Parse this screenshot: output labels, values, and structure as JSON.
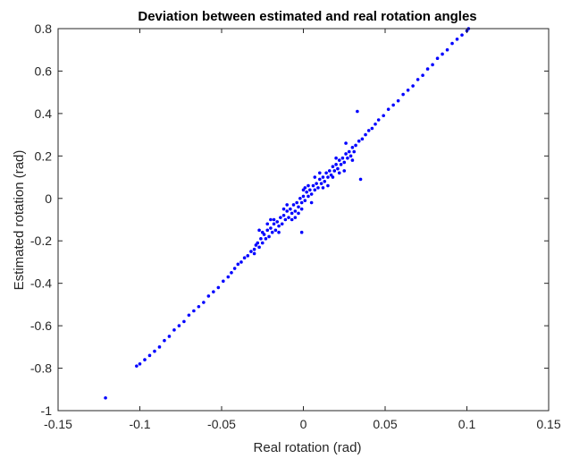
{
  "chart_data": {
    "type": "scatter",
    "title": "Deviation between estimated and real rotation angles",
    "xlabel": "Real rotation (rad)",
    "ylabel": "Estimated rotation (rad)",
    "xlim": [
      -0.15,
      0.15
    ],
    "ylim": [
      -1,
      0.8
    ],
    "xticks": [
      -0.15,
      -0.1,
      -0.05,
      0,
      0.05,
      0.1,
      0.15
    ],
    "xtick_labels": [
      "-0.15",
      "-0.1",
      "-0.05",
      "0",
      "0.05",
      "0.1",
      "0.15"
    ],
    "yticks": [
      -1,
      -0.8,
      -0.6,
      -0.4,
      -0.2,
      0,
      0.2,
      0.4,
      0.6,
      0.8
    ],
    "ytick_labels": [
      "-1",
      "-0.8",
      "-0.6",
      "-0.4",
      "-0.2",
      "0",
      "0.2",
      "0.4",
      "0.6",
      "0.8"
    ],
    "grid": false,
    "marker_color": "#0000ff",
    "axis_color": "#262626",
    "series": [
      {
        "points": [
          [
            -0.121,
            -0.94
          ],
          [
            -0.102,
            -0.79
          ],
          [
            -0.1,
            -0.78
          ],
          [
            -0.097,
            -0.76
          ],
          [
            -0.094,
            -0.74
          ],
          [
            -0.091,
            -0.72
          ],
          [
            -0.088,
            -0.7
          ],
          [
            -0.085,
            -0.67
          ],
          [
            -0.082,
            -0.65
          ],
          [
            -0.079,
            -0.62
          ],
          [
            -0.076,
            -0.6
          ],
          [
            -0.073,
            -0.58
          ],
          [
            -0.07,
            -0.55
          ],
          [
            -0.067,
            -0.53
          ],
          [
            -0.064,
            -0.51
          ],
          [
            -0.061,
            -0.49
          ],
          [
            -0.058,
            -0.46
          ],
          [
            -0.055,
            -0.44
          ],
          [
            -0.052,
            -0.42
          ],
          [
            -0.049,
            -0.39
          ],
          [
            -0.046,
            -0.37
          ],
          [
            -0.044,
            -0.35
          ],
          [
            -0.042,
            -0.33
          ],
          [
            -0.04,
            -0.31
          ],
          [
            -0.038,
            -0.3
          ],
          [
            -0.036,
            -0.28
          ],
          [
            -0.034,
            -0.27
          ],
          [
            -0.032,
            -0.25
          ],
          [
            -0.03,
            -0.24
          ],
          [
            -0.029,
            -0.22
          ],
          [
            -0.028,
            -0.21
          ],
          [
            -0.027,
            -0.23
          ],
          [
            -0.026,
            -0.19
          ],
          [
            -0.025,
            -0.21
          ],
          [
            -0.024,
            -0.17
          ],
          [
            -0.023,
            -0.19
          ],
          [
            -0.022,
            -0.15
          ],
          [
            -0.021,
            -0.18
          ],
          [
            -0.02,
            -0.14
          ],
          [
            -0.019,
            -0.16
          ],
          [
            -0.018,
            -0.12
          ],
          [
            -0.017,
            -0.15
          ],
          [
            -0.016,
            -0.11
          ],
          [
            -0.015,
            -0.13
          ],
          [
            -0.014,
            -0.09
          ],
          [
            -0.013,
            -0.12
          ],
          [
            -0.012,
            -0.08
          ],
          [
            -0.011,
            -0.1
          ],
          [
            -0.01,
            -0.06
          ],
          [
            -0.009,
            -0.09
          ],
          [
            -0.008,
            -0.05
          ],
          [
            -0.007,
            -0.07
          ],
          [
            -0.006,
            -0.03
          ],
          [
            -0.005,
            -0.06
          ],
          [
            -0.004,
            -0.02
          ],
          [
            -0.003,
            -0.04
          ],
          [
            -0.002,
            0.0
          ],
          [
            -0.001,
            -0.02
          ],
          [
            0.0,
            0.01
          ],
          [
            0.001,
            -0.01
          ],
          [
            0.002,
            0.03
          ],
          [
            0.003,
            0.01
          ],
          [
            0.004,
            0.04
          ],
          [
            0.005,
            0.02
          ],
          [
            0.006,
            0.06
          ],
          [
            0.007,
            0.04
          ],
          [
            0.008,
            0.07
          ],
          [
            0.009,
            0.05
          ],
          [
            0.01,
            0.09
          ],
          [
            0.011,
            0.07
          ],
          [
            0.012,
            0.1
          ],
          [
            0.013,
            0.08
          ],
          [
            0.014,
            0.12
          ],
          [
            0.015,
            0.1
          ],
          [
            0.016,
            0.13
          ],
          [
            0.017,
            0.11
          ],
          [
            0.018,
            0.15
          ],
          [
            0.019,
            0.13
          ],
          [
            0.02,
            0.16
          ],
          [
            0.021,
            0.14
          ],
          [
            0.022,
            0.18
          ],
          [
            0.023,
            0.16
          ],
          [
            0.024,
            0.19
          ],
          [
            0.025,
            0.17
          ],
          [
            0.026,
            0.21
          ],
          [
            0.027,
            0.19
          ],
          [
            0.028,
            0.22
          ],
          [
            0.029,
            0.2
          ],
          [
            0.03,
            0.24
          ],
          [
            0.031,
            0.22
          ],
          [
            0.032,
            0.25
          ],
          [
            0.034,
            0.27
          ],
          [
            0.036,
            0.28
          ],
          [
            0.038,
            0.3
          ],
          [
            0.04,
            0.32
          ],
          [
            0.042,
            0.33
          ],
          [
            0.044,
            0.35
          ],
          [
            0.046,
            0.37
          ],
          [
            0.049,
            0.39
          ],
          [
            0.052,
            0.42
          ],
          [
            0.055,
            0.44
          ],
          [
            0.058,
            0.46
          ],
          [
            0.061,
            0.49
          ],
          [
            0.064,
            0.51
          ],
          [
            0.067,
            0.53
          ],
          [
            0.07,
            0.56
          ],
          [
            0.073,
            0.58
          ],
          [
            0.076,
            0.61
          ],
          [
            0.079,
            0.63
          ],
          [
            0.082,
            0.66
          ],
          [
            0.085,
            0.68
          ],
          [
            0.088,
            0.7
          ],
          [
            0.091,
            0.73
          ],
          [
            0.094,
            0.75
          ],
          [
            0.097,
            0.77
          ],
          [
            0.1,
            0.79
          ],
          [
            0.101,
            0.8
          ],
          [
            -0.02,
            -0.1
          ],
          [
            -0.015,
            -0.16
          ],
          [
            -0.01,
            -0.03
          ],
          [
            -0.005,
            -0.09
          ],
          [
            0.0,
            0.04
          ],
          [
            0.005,
            -0.02
          ],
          [
            0.01,
            0.12
          ],
          [
            0.015,
            0.06
          ],
          [
            0.02,
            0.19
          ],
          [
            0.025,
            0.13
          ],
          [
            -0.025,
            -0.16
          ],
          [
            -0.03,
            -0.26
          ],
          [
            0.03,
            0.18
          ],
          [
            0.003,
            0.06
          ],
          [
            -0.003,
            -0.07
          ],
          [
            0.012,
            0.05
          ],
          [
            -0.012,
            -0.05
          ],
          [
            0.018,
            0.1
          ],
          [
            -0.018,
            -0.1
          ],
          [
            0.007,
            0.1
          ],
          [
            -0.007,
            -0.1
          ],
          [
            0.022,
            0.12
          ],
          [
            -0.022,
            -0.12
          ],
          [
            0.001,
            0.05
          ],
          [
            -0.001,
            -0.05
          ],
          [
            0.033,
            0.41
          ],
          [
            -0.027,
            -0.15
          ],
          [
            -0.001,
            -0.16
          ],
          [
            0.035,
            0.09
          ],
          [
            0.026,
            0.26
          ]
        ]
      }
    ]
  }
}
